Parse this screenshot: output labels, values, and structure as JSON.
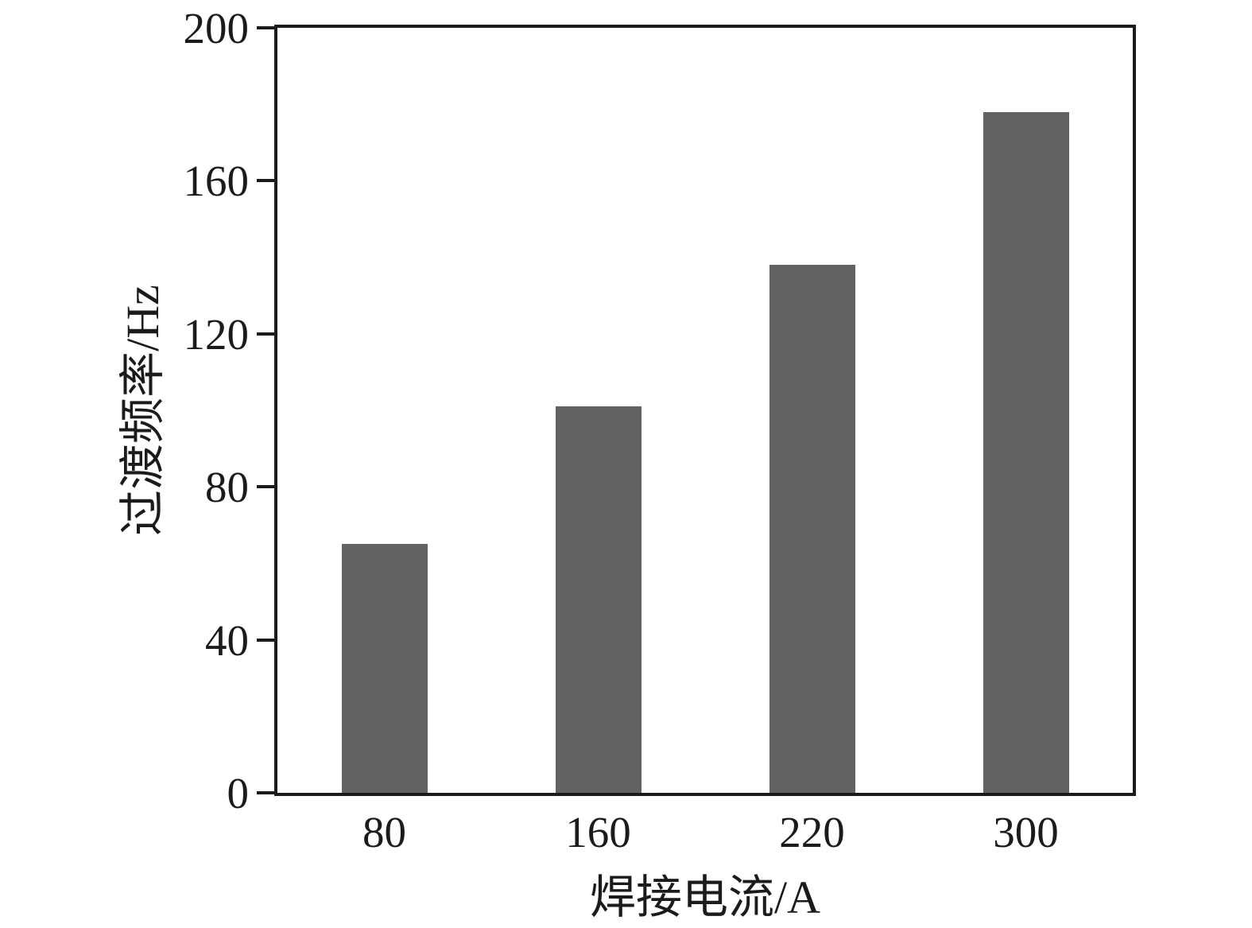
{
  "chart_data": {
    "type": "bar",
    "title": "",
    "categories": [
      "80",
      "160",
      "220",
      "300"
    ],
    "values": [
      65,
      101,
      138,
      178
    ],
    "xlabel": "焊接电流/A",
    "ylabel": "过渡频率/Hz",
    "ylim": [
      0,
      200
    ],
    "yticks": [
      0,
      40,
      80,
      120,
      160,
      200
    ],
    "grid": false,
    "legend": "none",
    "bar_color": "#636163",
    "axis_color": "#1b1b1b",
    "text_color": "#1b1b1b",
    "background_color": "#ffffff"
  }
}
